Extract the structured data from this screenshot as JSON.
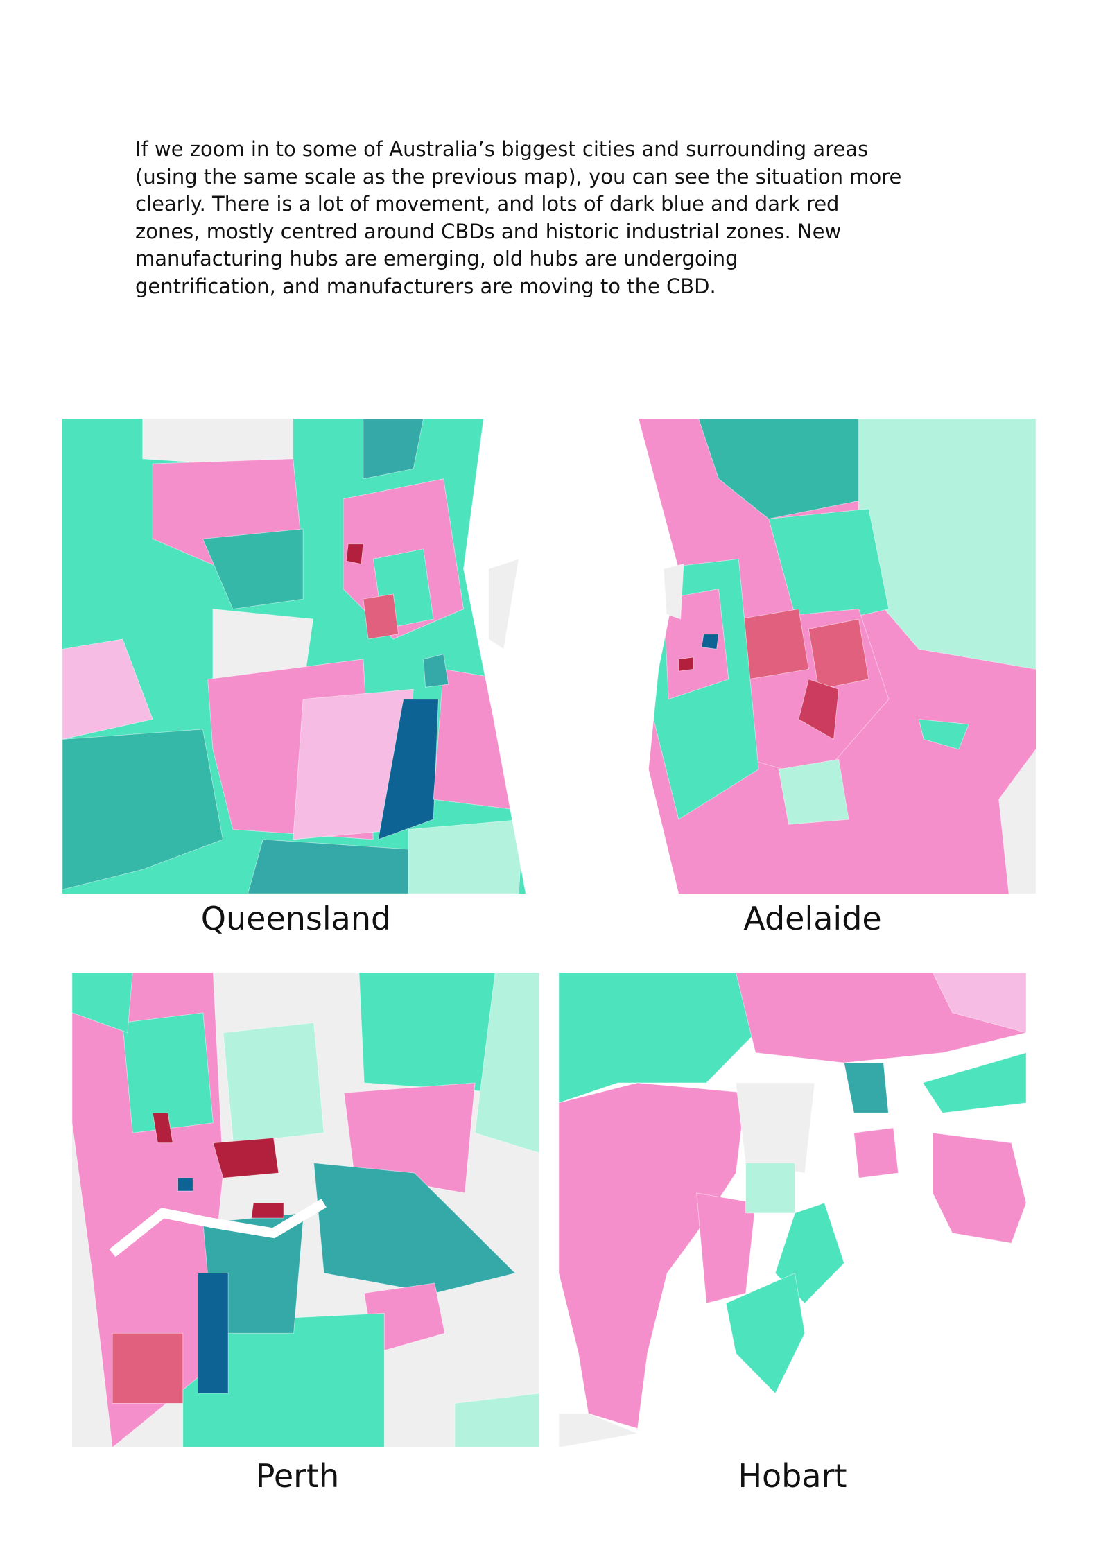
{
  "document": {
    "paragraph_lines": [
      "If we zoom in to some of Australia’s biggest cities and surrounding areas",
      "(using the same scale as the previous map), you can see the situation more",
      "clearly. There is a lot of movement, and lots of dark blue and dark red",
      "zones, mostly centred around CBDs and historic industrial zones. New",
      "manufacturing hubs are emerging, old hubs are undergoing",
      "gentrification, and manufacturers are moving to the CBD."
    ],
    "maps": [
      {
        "label": "Queensland"
      },
      {
        "label": "Adelaide"
      },
      {
        "label": "Perth"
      },
      {
        "label": "Hobart"
      }
    ]
  }
}
